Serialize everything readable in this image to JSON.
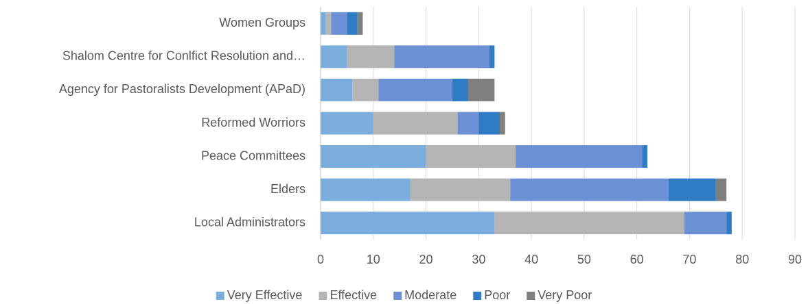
{
  "chart_data": {
    "type": "stacked-bar-horizontal",
    "categories": [
      "Women Groups",
      "Shalom Centre for Conlfict Resolution and…",
      "Agency for Pastoralists Development (APaD)",
      "Reformed Worriors",
      "Peace Committees",
      "Elders",
      "Local Administrators"
    ],
    "series": [
      {
        "name": "Very Effective",
        "color": "#7badde",
        "values": [
          1,
          5,
          6,
          10,
          20,
          17,
          33
        ]
      },
      {
        "name": "Effective",
        "color": "#b5b5b5",
        "values": [
          1,
          9,
          5,
          16,
          17,
          19,
          36
        ]
      },
      {
        "name": "Moderate",
        "color": "#6b90d4",
        "values": [
          3,
          18,
          14,
          4,
          24,
          30,
          8
        ]
      },
      {
        "name": "Poor",
        "color": "#2f7cc4",
        "values": [
          2,
          1,
          3,
          4,
          1,
          9,
          1
        ]
      },
      {
        "name": "Very Poor",
        "color": "#7f7f7f",
        "values": [
          1,
          0,
          5,
          1,
          0,
          2,
          0
        ]
      }
    ],
    "xlim": [
      0,
      90
    ],
    "xticks": [
      0,
      10,
      20,
      30,
      40,
      50,
      60,
      70,
      80,
      90
    ],
    "grid": true,
    "legend": "bottom"
  }
}
